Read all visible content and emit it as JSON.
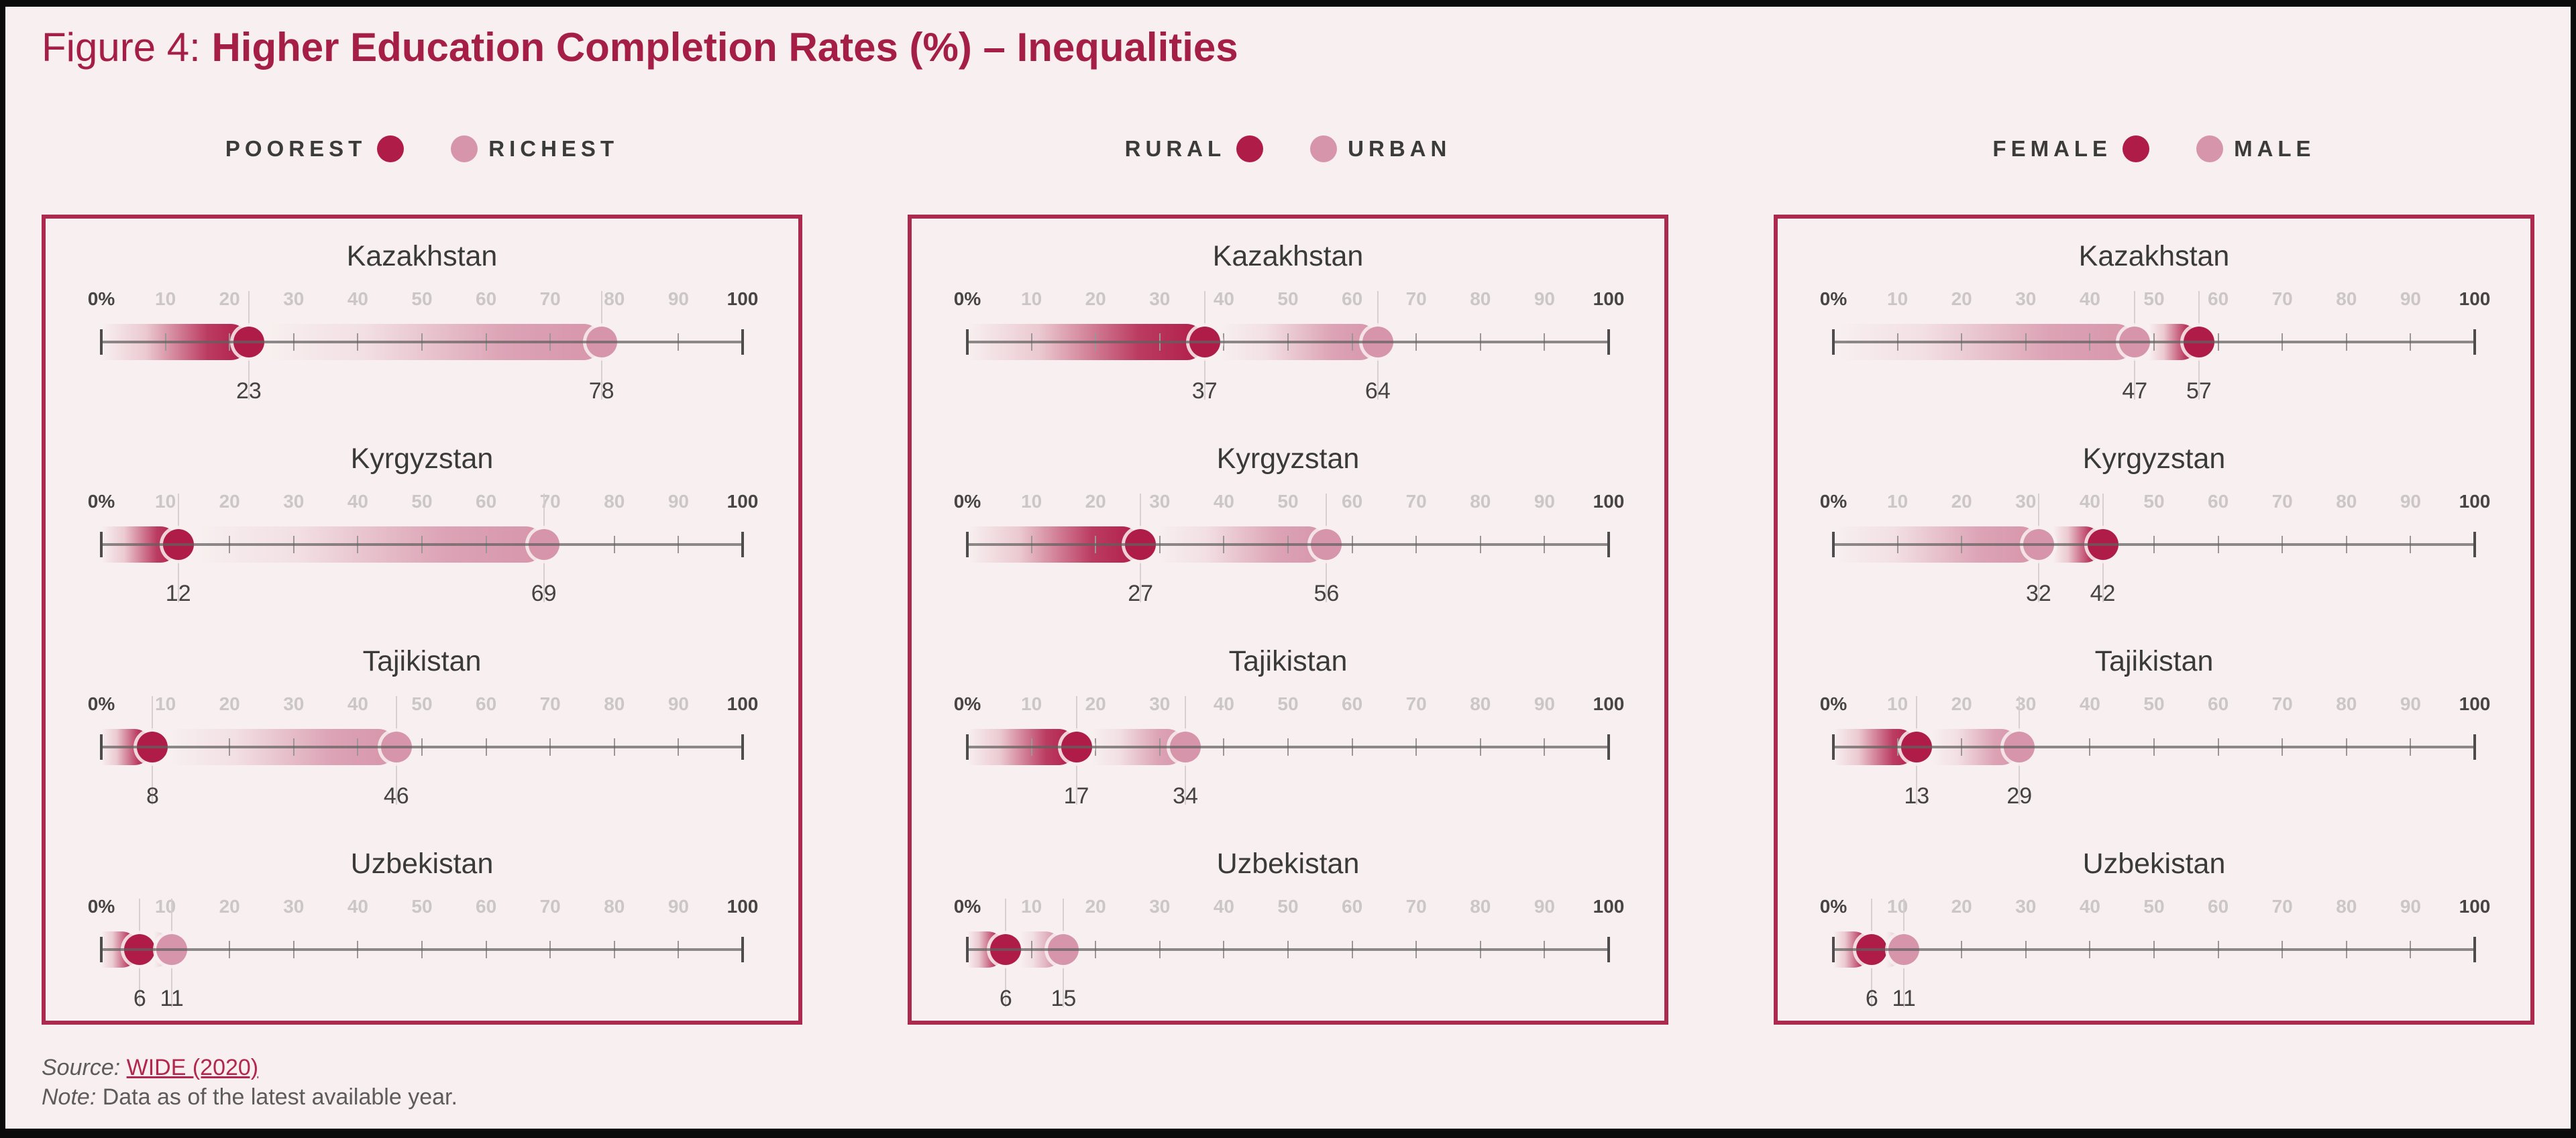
{
  "title": {
    "prefix": "Figure 4: ",
    "main": "Higher Education Completion Rates (%) – Inequalities"
  },
  "colors": {
    "dark_dot": "#b01c48",
    "light_dot": "#d795ab",
    "panel_border": "#ac2a4e",
    "background": "#f8f0f0",
    "title_text": "#a51e45",
    "link_text": "#b3274e"
  },
  "axis": {
    "ticks": [
      "0%",
      "10",
      "20",
      "30",
      "40",
      "50",
      "60",
      "70",
      "80",
      "90",
      "100"
    ],
    "min": 0,
    "max": 100
  },
  "panels": [
    {
      "legend": {
        "first": "POOREST",
        "second": "RICHEST"
      },
      "rows": [
        {
          "country": "Kazakhstan",
          "first": 23,
          "second": 78
        },
        {
          "country": "Kyrgyzstan",
          "first": 12,
          "second": 69
        },
        {
          "country": "Tajikistan",
          "first": 8,
          "second": 46
        },
        {
          "country": "Uzbekistan",
          "first": 6,
          "second": 11
        }
      ]
    },
    {
      "legend": {
        "first": "RURAL",
        "second": "URBAN"
      },
      "rows": [
        {
          "country": "Kazakhstan",
          "first": 37,
          "second": 64
        },
        {
          "country": "Kyrgyzstan",
          "first": 27,
          "second": 56
        },
        {
          "country": "Tajikistan",
          "first": 17,
          "second": 34
        },
        {
          "country": "Uzbekistan",
          "first": 6,
          "second": 15
        }
      ]
    },
    {
      "legend": {
        "first": "FEMALE",
        "second": "MALE"
      },
      "rows": [
        {
          "country": "Kazakhstan",
          "first": 57,
          "second": 47
        },
        {
          "country": "Kyrgyzstan",
          "first": 42,
          "second": 32
        },
        {
          "country": "Tajikistan",
          "first": 13,
          "second": 29
        },
        {
          "country": "Uzbekistan",
          "first": 6,
          "second": 11
        }
      ]
    }
  ],
  "footer": {
    "source_label": "Source: ",
    "source_link": "WIDE (2020)",
    "note_label": "Note: ",
    "note_text": "Data as of the latest available year."
  },
  "chart_data": [
    {
      "type": "scatter",
      "subtype": "dumbbell-dot-plot",
      "orientation": "horizontal",
      "title": "Poorest vs Richest",
      "categories": [
        "Kazakhstan",
        "Kyrgyzstan",
        "Tajikistan",
        "Uzbekistan"
      ],
      "series": [
        {
          "name": "Poorest",
          "color": "#b01c48",
          "values": [
            23,
            12,
            8,
            6
          ]
        },
        {
          "name": "Richest",
          "color": "#d795ab",
          "values": [
            78,
            69,
            46,
            11
          ]
        }
      ],
      "xlim": [
        0,
        100
      ],
      "xticks": [
        0,
        10,
        20,
        30,
        40,
        50,
        60,
        70,
        80,
        90,
        100
      ],
      "grid": false,
      "legend_position": "top"
    },
    {
      "type": "scatter",
      "subtype": "dumbbell-dot-plot",
      "orientation": "horizontal",
      "title": "Rural vs Urban",
      "categories": [
        "Kazakhstan",
        "Kyrgyzstan",
        "Tajikistan",
        "Uzbekistan"
      ],
      "series": [
        {
          "name": "Rural",
          "color": "#b01c48",
          "values": [
            37,
            27,
            17,
            6
          ]
        },
        {
          "name": "Urban",
          "color": "#d795ab",
          "values": [
            64,
            56,
            34,
            15
          ]
        }
      ],
      "xlim": [
        0,
        100
      ],
      "xticks": [
        0,
        10,
        20,
        30,
        40,
        50,
        60,
        70,
        80,
        90,
        100
      ],
      "grid": false,
      "legend_position": "top"
    },
    {
      "type": "scatter",
      "subtype": "dumbbell-dot-plot",
      "orientation": "horizontal",
      "title": "Female vs Male",
      "categories": [
        "Kazakhstan",
        "Kyrgyzstan",
        "Tajikistan",
        "Uzbekistan"
      ],
      "series": [
        {
          "name": "Female",
          "color": "#b01c48",
          "values": [
            57,
            42,
            13,
            6
          ]
        },
        {
          "name": "Male",
          "color": "#d795ab",
          "values": [
            47,
            32,
            29,
            11
          ]
        }
      ],
      "xlim": [
        0,
        100
      ],
      "xticks": [
        0,
        10,
        20,
        30,
        40,
        50,
        60,
        70,
        80,
        90,
        100
      ],
      "grid": false,
      "legend_position": "top"
    }
  ]
}
